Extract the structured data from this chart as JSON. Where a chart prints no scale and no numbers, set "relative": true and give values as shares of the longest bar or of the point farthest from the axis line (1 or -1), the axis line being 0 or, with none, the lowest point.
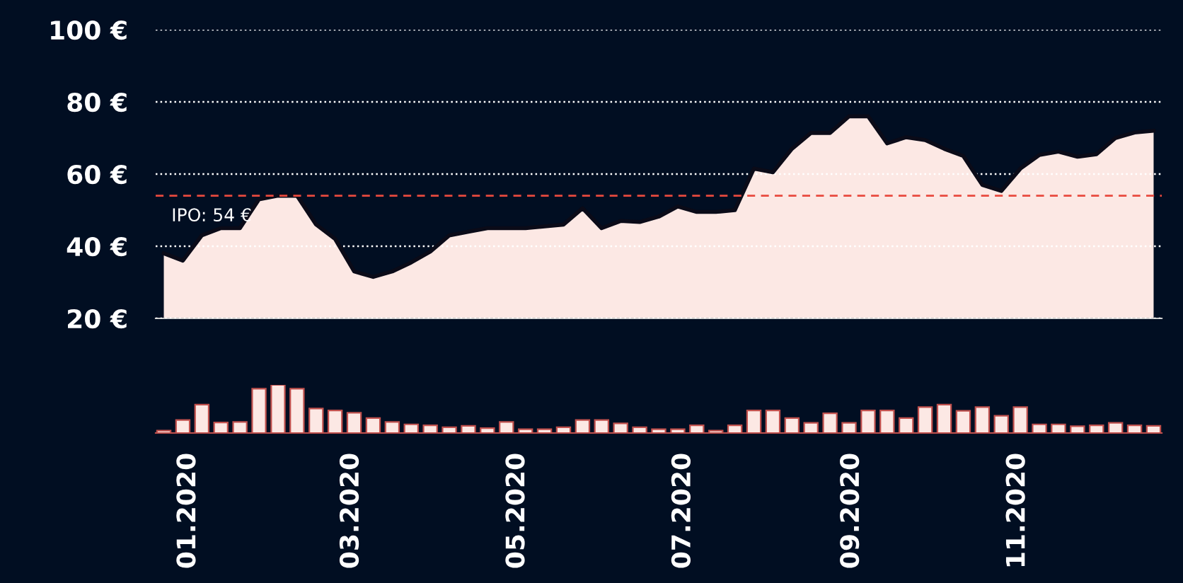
{
  "chart_data": [
    {
      "type": "area",
      "x": [
        "2019-12-23",
        "2019-12-30",
        "2020-01-06",
        "2020-01-13",
        "2020-01-20",
        "2020-01-27",
        "2020-02-03",
        "2020-02-10",
        "2020-02-17",
        "2020-02-24",
        "2020-03-02",
        "2020-03-09",
        "2020-03-16",
        "2020-03-23",
        "2020-03-30",
        "2020-04-06",
        "2020-04-13",
        "2020-04-20",
        "2020-04-27",
        "2020-05-04",
        "2020-05-11",
        "2020-05-18",
        "2020-05-25",
        "2020-06-01",
        "2020-06-08",
        "2020-06-15",
        "2020-06-22",
        "2020-06-29",
        "2020-07-06",
        "2020-07-13",
        "2020-07-20",
        "2020-07-27",
        "2020-08-03",
        "2020-08-10",
        "2020-08-17",
        "2020-08-24",
        "2020-08-31",
        "2020-09-07",
        "2020-09-14",
        "2020-09-21",
        "2020-09-28",
        "2020-10-05",
        "2020-10-12",
        "2020-10-19",
        "2020-10-26",
        "2020-11-02",
        "2020-11-09",
        "2020-11-16",
        "2020-11-23",
        "2020-11-30",
        "2020-12-07",
        "2020-12-14",
        "2020-12-21"
      ],
      "series": [
        {
          "color": "#fce8e4",
          "values": [
            38,
            36,
            43,
            45,
            45,
            53,
            54,
            54,
            46,
            42,
            33,
            31.5,
            33,
            35.5,
            38.5,
            43,
            44,
            45,
            45,
            45,
            45.5,
            46,
            50.5,
            45,
            47,
            46.7,
            48.2,
            51,
            49.5,
            49.5,
            50,
            61.5,
            60.5,
            67,
            71.4,
            71.4,
            76,
            76,
            68.5,
            70.2,
            69.4,
            67,
            65,
            57,
            55.3,
            61.5,
            65.3,
            66.2,
            64.8,
            65.5,
            70,
            71.5,
            72
          ]
        }
      ],
      "xlim": [
        "2019-12-20",
        "2020-12-24"
      ],
      "ylim": [
        20,
        100
      ],
      "yticks": [
        {
          "value": 20,
          "label": "20 €"
        },
        {
          "value": 40,
          "label": "40 €"
        },
        {
          "value": 60,
          "label": "60 €"
        },
        {
          "value": 80,
          "label": "80 €"
        },
        {
          "value": 100,
          "label": "100 €"
        }
      ],
      "ref_lines": [
        {
          "axis": "y",
          "value": 54,
          "label": "IPO: 54 €",
          "color": "#e8493e",
          "line_style": "dashed"
        }
      ],
      "grid": "y",
      "tick_labels": "y"
    },
    {
      "type": "bar",
      "relative": true,
      "x": [
        "2019-12-23",
        "2019-12-30",
        "2020-01-06",
        "2020-01-13",
        "2020-01-20",
        "2020-01-27",
        "2020-02-03",
        "2020-02-10",
        "2020-02-17",
        "2020-02-24",
        "2020-03-02",
        "2020-03-09",
        "2020-03-16",
        "2020-03-23",
        "2020-03-30",
        "2020-04-06",
        "2020-04-13",
        "2020-04-20",
        "2020-04-27",
        "2020-05-04",
        "2020-05-11",
        "2020-05-18",
        "2020-05-25",
        "2020-06-01",
        "2020-06-08",
        "2020-06-15",
        "2020-06-22",
        "2020-06-29",
        "2020-07-06",
        "2020-07-13",
        "2020-07-20",
        "2020-07-27",
        "2020-08-03",
        "2020-08-10",
        "2020-08-17",
        "2020-08-24",
        "2020-08-31",
        "2020-09-07",
        "2020-09-14",
        "2020-09-21",
        "2020-09-28",
        "2020-10-05",
        "2020-10-12",
        "2020-10-19",
        "2020-10-26",
        "2020-11-02",
        "2020-11-09",
        "2020-11-16",
        "2020-11-23",
        "2020-11-30",
        "2020-12-07",
        "2020-12-14",
        "2020-12-21"
      ],
      "series": [
        {
          "color": "#fce8e4",
          "values": [
            0.05,
            0.27,
            0.59,
            0.22,
            0.23,
            0.92,
            1,
            0.92,
            0.51,
            0.47,
            0.42,
            0.31,
            0.23,
            0.18,
            0.16,
            0.12,
            0.15,
            0.1,
            0.23,
            0.08,
            0.08,
            0.12,
            0.27,
            0.27,
            0.2,
            0.12,
            0.08,
            0.08,
            0.16,
            0.05,
            0.16,
            0.47,
            0.47,
            0.31,
            0.21,
            0.41,
            0.21,
            0.47,
            0.47,
            0.31,
            0.54,
            0.59,
            0.46,
            0.54,
            0.36,
            0.54,
            0.18,
            0.18,
            0.14,
            0.16,
            0.21,
            0.16,
            0.15
          ]
        }
      ],
      "xlim": [
        "2019-12-20",
        "2020-12-24"
      ],
      "xticks": [
        {
          "value": "2020-01-01",
          "label": "01.2020"
        },
        {
          "value": "2020-03-01",
          "label": "03.2020"
        },
        {
          "value": "2020-05-01",
          "label": "05.2020"
        },
        {
          "value": "2020-07-01",
          "label": "07.2020"
        },
        {
          "value": "2020-09-01",
          "label": "09.2020"
        },
        {
          "value": "2020-11-01",
          "label": "11.2020"
        }
      ],
      "grid": false,
      "tick_labels": "x"
    }
  ]
}
